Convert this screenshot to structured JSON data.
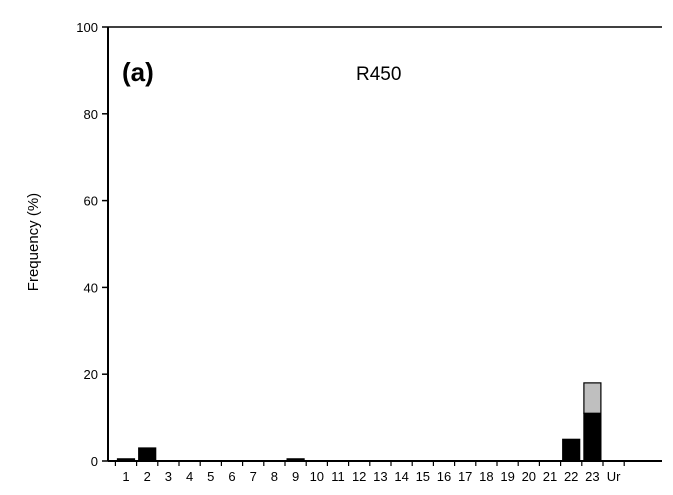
{
  "chart_data": {
    "type": "bar",
    "stacked": true,
    "panel_label": "(a)",
    "title": "R450",
    "xlabel": "",
    "ylabel": "Frequency (%)",
    "ylim": [
      0,
      100
    ],
    "yticks": [
      0,
      20,
      40,
      60,
      80,
      100
    ],
    "grid": false,
    "legend": "none",
    "categories": [
      "1",
      "2",
      "3",
      "4",
      "5",
      "6",
      "7",
      "8",
      "9",
      "10",
      "11",
      "12",
      "13",
      "14",
      "15",
      "16",
      "17",
      "18",
      "19",
      "20",
      "21",
      "22",
      "23",
      "Ur"
    ],
    "series": [
      {
        "color": "#000000",
        "values": [
          0.5,
          3,
          0,
          0,
          0,
          0,
          0,
          0,
          0.5,
          0,
          0,
          0,
          0,
          0,
          0,
          0,
          0,
          0,
          0,
          0,
          0,
          5,
          11,
          0
        ]
      },
      {
        "color": "#bfbfbf",
        "values": [
          0,
          0,
          0,
          0,
          0,
          0,
          0,
          0,
          0,
          0,
          0,
          0,
          0,
          0,
          0,
          0,
          0,
          0,
          0,
          0,
          0,
          0,
          7,
          0
        ]
      }
    ]
  }
}
